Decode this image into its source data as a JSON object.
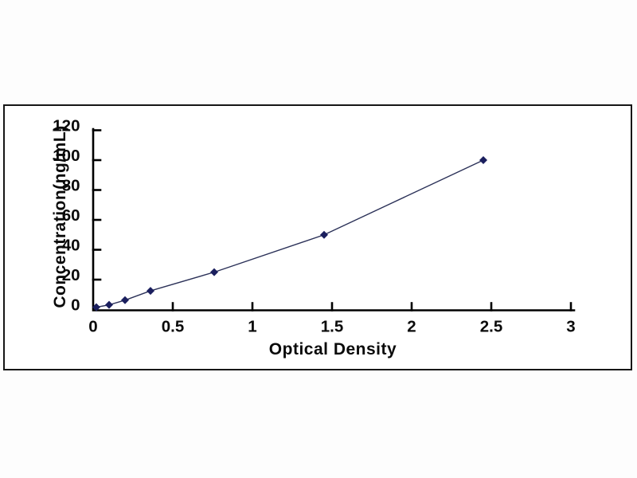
{
  "chart_data": {
    "type": "line",
    "xlabel": "Optical Density",
    "ylabel": "Concentration(ng/mL)",
    "x": [
      0.02,
      0.1,
      0.2,
      0.36,
      0.76,
      1.45,
      2.45
    ],
    "y": [
      1.56,
      3.12,
      6.25,
      12.5,
      25,
      50,
      100
    ],
    "xlim": [
      0,
      3
    ],
    "ylim": [
      0,
      120
    ],
    "x_ticks": [
      0,
      0.5,
      1,
      1.5,
      2,
      2.5,
      3
    ],
    "y_ticks": [
      0,
      20,
      40,
      60,
      80,
      100,
      120
    ],
    "grid": false,
    "legend": "none",
    "marker": "diamond",
    "colors": {
      "line": "#2b3158",
      "marker": "#1b1f5e",
      "axis": "#000000",
      "text": "#0a0a0a",
      "frame_border": "#161616",
      "plot_background": "#ffffff",
      "page_background": "#fdfdfd"
    }
  }
}
